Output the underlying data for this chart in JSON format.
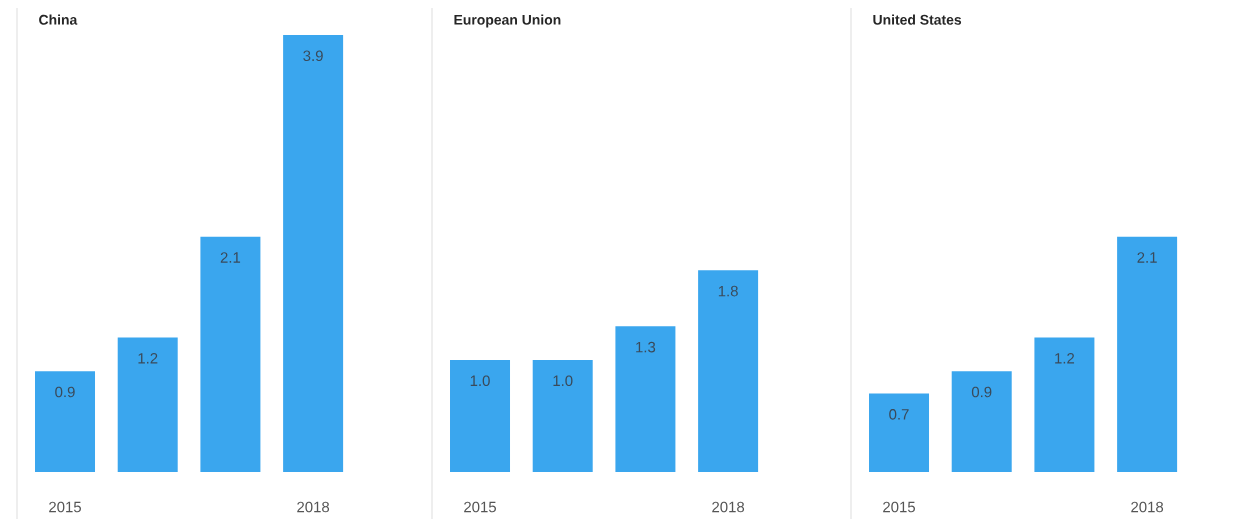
{
  "chart_data": [
    {
      "type": "bar",
      "title": "China",
      "categories": [
        "2015",
        null,
        null,
        "2018"
      ],
      "values": [
        0.9,
        1.2,
        2.1,
        3.9
      ],
      "color": "#3aa6ee",
      "value_labels": [
        "0.9",
        "1.2",
        "2.1",
        "3.9"
      ]
    },
    {
      "type": "bar",
      "title": "European Union",
      "categories": [
        "2015",
        null,
        null,
        "2018"
      ],
      "values": [
        1.0,
        1.0,
        1.3,
        1.8
      ],
      "color": "#3aa6ee",
      "value_labels": [
        "1.0",
        "1.0",
        "1.3",
        "1.8"
      ]
    },
    {
      "type": "bar",
      "title": "United States",
      "categories": [
        "2015",
        null,
        null,
        "2018"
      ],
      "values": [
        0.7,
        0.9,
        1.2,
        2.1
      ],
      "color": "#3aa6ee",
      "value_labels": [
        "0.7",
        "0.9",
        "1.2",
        "2.1"
      ]
    }
  ]
}
